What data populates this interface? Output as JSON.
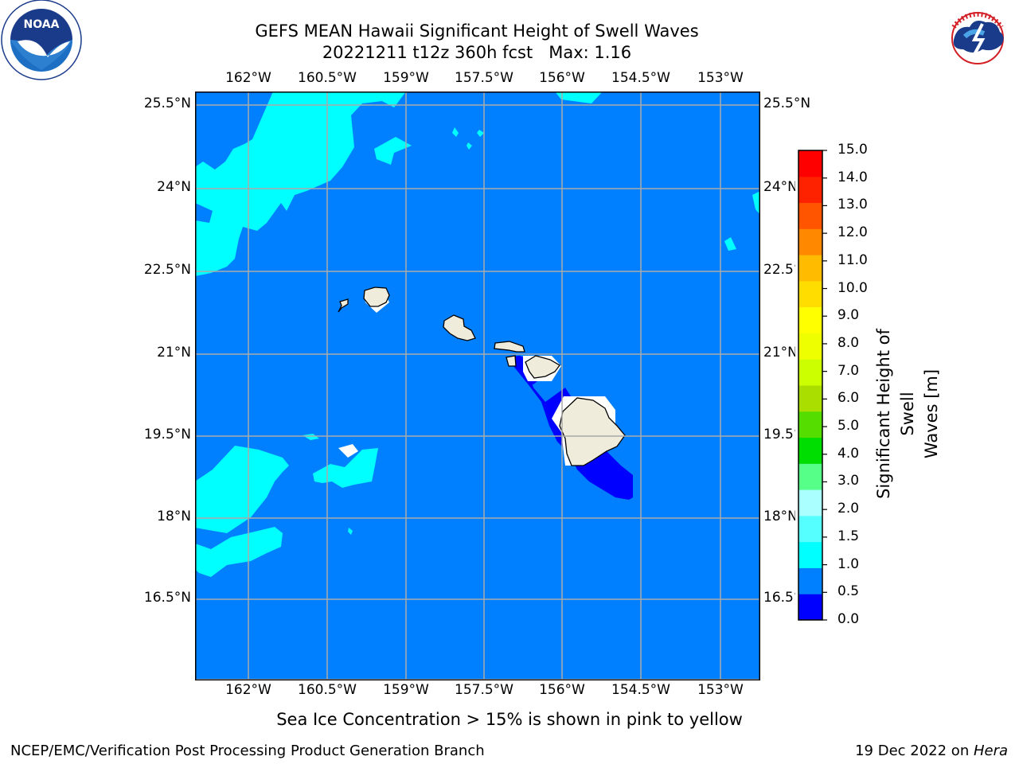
{
  "header": {
    "title_line1": "GEFS MEAN Hawaii Significant Height of Swell Waves",
    "title_line2": "20221211 t12z 360h fcst   Max: 1.16"
  },
  "logos": {
    "left": {
      "name": "NOAA",
      "ring_text": "NATIONAL OCEANIC AND ATMOSPHERIC ADMINISTRATION · U.S. DEPARTMENT OF COMMERCE"
    },
    "right": {
      "name": "NATIONAL WEATHER SERVICE"
    }
  },
  "map": {
    "lon_labels": [
      "162°W",
      "160.5°W",
      "159°W",
      "157.5°W",
      "156°W",
      "154.5°W",
      "153°W"
    ],
    "lat_labels": [
      "25.5°N",
      "24°N",
      "22.5°N",
      "21°N",
      "19.5°N",
      "18°N",
      "16.5°N"
    ],
    "colors": {
      "ocean": "#0080ff",
      "light_swell": "#00ffff",
      "low_swell": "#0000ff",
      "land": "#efecdc",
      "grid": "#aaaaaa"
    }
  },
  "colorbar": {
    "label_line1": "Significant Height of Swell",
    "label_line2": "Waves [m]",
    "ticks": [
      "0.0",
      "0.5",
      "1.0",
      "1.5",
      "2.0",
      "3.0",
      "4.0",
      "5.0",
      "6.0",
      "7.0",
      "8.0",
      "9.0",
      "10.0",
      "11.0",
      "12.0",
      "13.0",
      "14.0",
      "15.0"
    ],
    "colors": [
      "#0000ff",
      "#0080ff",
      "#00ffff",
      "#55ffff",
      "#aaffff",
      "#55ff88",
      "#00dd00",
      "#55dd00",
      "#aadd00",
      "#ccff00",
      "#eeff00",
      "#ffff00",
      "#ffdd00",
      "#ffbb00",
      "#ff8800",
      "#ff5500",
      "#ff2200",
      "#ff0000"
    ]
  },
  "footer": {
    "note": "Sea Ice Concentration > 15% is shown in pink to yellow",
    "left": "NCEP/EMC/Verification Post Processing Product Generation Branch",
    "right_date": "19 Dec 2022 on ",
    "right_host": "Hera"
  }
}
